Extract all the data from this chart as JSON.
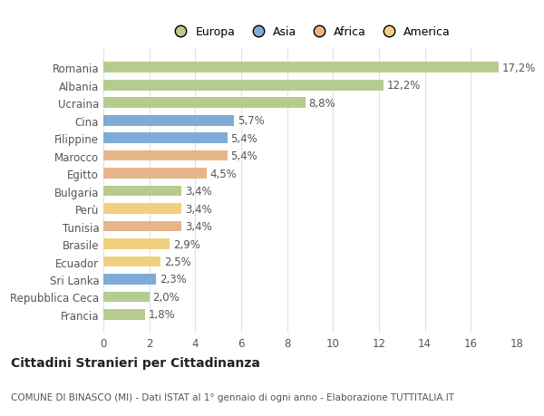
{
  "categories": [
    "Romania",
    "Albania",
    "Ucraina",
    "Cina",
    "Filippine",
    "Marocco",
    "Egitto",
    "Bulgaria",
    "Perù",
    "Tunisia",
    "Brasile",
    "Ecuador",
    "Sri Lanka",
    "Repubblica Ceca",
    "Francia"
  ],
  "values": [
    17.2,
    12.2,
    8.8,
    5.7,
    5.4,
    5.4,
    4.5,
    3.4,
    3.4,
    3.4,
    2.9,
    2.5,
    2.3,
    2.0,
    1.8
  ],
  "labels": [
    "17,2%",
    "12,2%",
    "8,8%",
    "5,7%",
    "5,4%",
    "5,4%",
    "4,5%",
    "3,4%",
    "3,4%",
    "3,4%",
    "2,9%",
    "2,5%",
    "2,3%",
    "2,0%",
    "1,8%"
  ],
  "bar_colors": [
    "#b5cc8e",
    "#b5cc8e",
    "#b5cc8e",
    "#7facd6",
    "#7facd6",
    "#e8b48a",
    "#e8b48a",
    "#b5cc8e",
    "#f0d080",
    "#e8b48a",
    "#f0d080",
    "#f0d080",
    "#7facd6",
    "#b5cc8e",
    "#b5cc8e"
  ],
  "legend_labels": [
    "Europa",
    "Asia",
    "Africa",
    "America"
  ],
  "legend_colors": [
    "#b5cc8e",
    "#7facd6",
    "#e8b48a",
    "#f0d080"
  ],
  "xlim": [
    0,
    18
  ],
  "xticks": [
    0,
    2,
    4,
    6,
    8,
    10,
    12,
    14,
    16,
    18
  ],
  "title": "Cittadini Stranieri per Cittadinanza",
  "subtitle": "COMUNE DI BINASCO (MI) - Dati ISTAT al 1° gennaio di ogni anno - Elaborazione TUTTITALIA.IT",
  "bg_color": "#ffffff",
  "bar_height": 0.6,
  "grid_color": "#e0e0e0",
  "label_fontsize": 8.5,
  "tick_fontsize": 8.5,
  "title_fontsize": 10,
  "subtitle_fontsize": 7.5
}
